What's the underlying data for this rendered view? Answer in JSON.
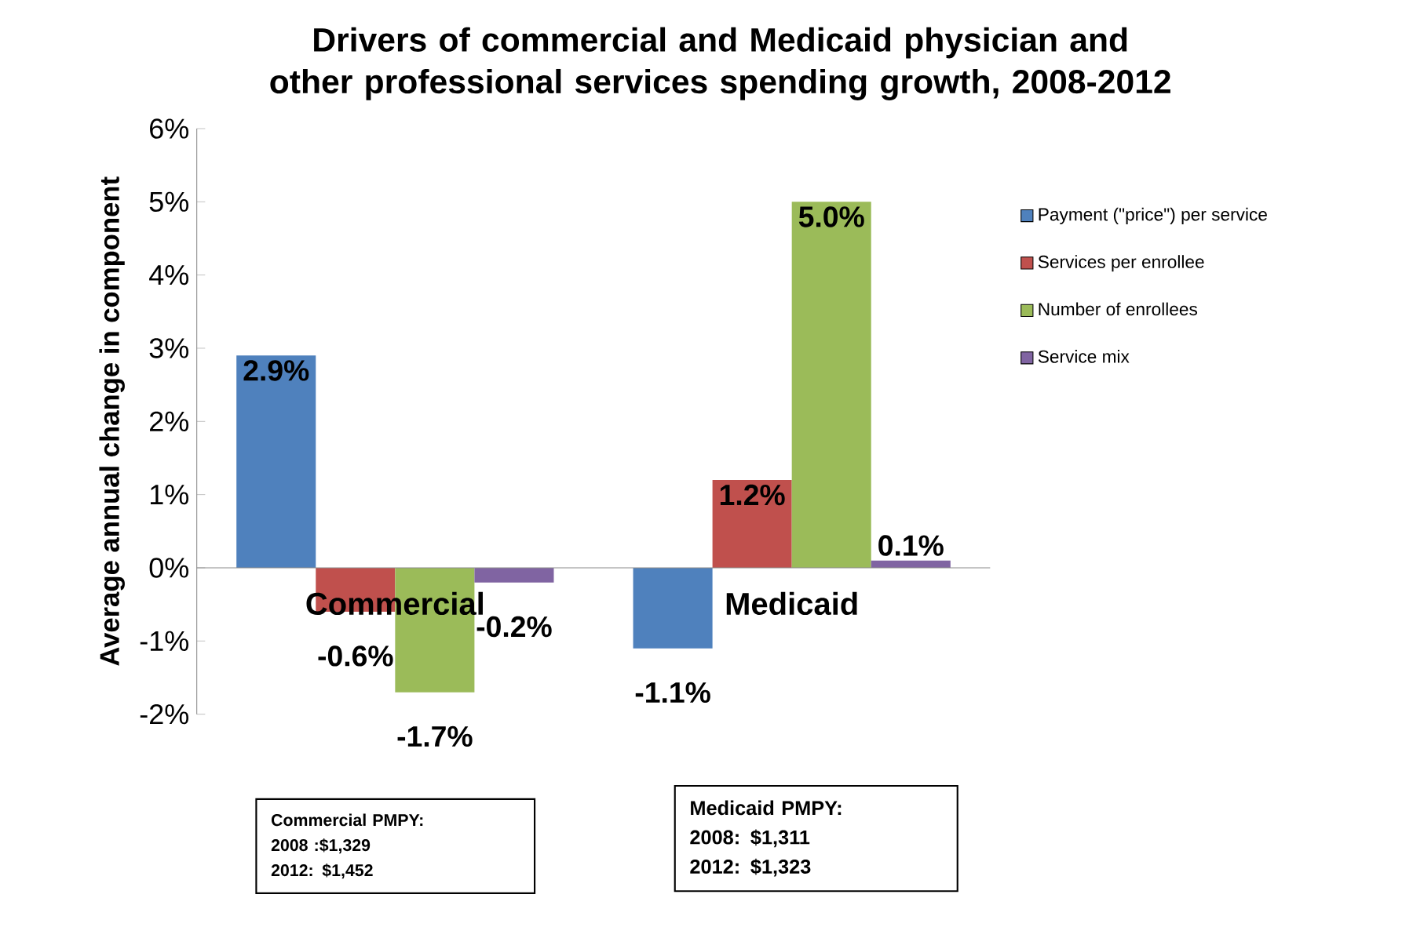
{
  "chart_data": {
    "type": "bar",
    "title": "Drivers of commercial and Medicaid physician and other professional services spending growth, 2008-2012",
    "ylabel": "Average annual change in component",
    "categories": [
      "Commercial",
      "Medicaid"
    ],
    "series": [
      {
        "name": "Payment (\"price\") per service",
        "color": "#4f81bd",
        "values": [
          2.9,
          -1.1
        ],
        "value_labels": [
          "2.9%",
          "-1.1%"
        ]
      },
      {
        "name": "Services per enrollee",
        "color": "#c0504d",
        "values": [
          -0.6,
          1.2
        ],
        "value_labels": [
          "-0.6%",
          "1.2%"
        ]
      },
      {
        "name": "Number of enrollees",
        "color": "#9bbb59",
        "values": [
          -1.7,
          5.0
        ],
        "value_labels": [
          "-1.7%",
          "5.0%"
        ]
      },
      {
        "name": "Service mix",
        "color": "#8064a2",
        "values": [
          -0.2,
          0.1
        ],
        "value_labels": [
          "-0.2%",
          "0.1%"
        ]
      }
    ],
    "ylim": [
      -2,
      6
    ],
    "yticks": [
      {
        "value": -2,
        "label": "-2%"
      },
      {
        "value": -1,
        "label": "-1%"
      },
      {
        "value": 0,
        "label": "0%"
      },
      {
        "value": 1,
        "label": "1%"
      },
      {
        "value": 2,
        "label": "2%"
      },
      {
        "value": 3,
        "label": "3%"
      },
      {
        "value": 4,
        "label": "4%"
      },
      {
        "value": 5,
        "label": "5%"
      },
      {
        "value": 6,
        "label": "6%"
      }
    ],
    "legend": "right",
    "grid": false,
    "annotations": [
      "Commercial PMPY:",
      "2008 :$1,329",
      "2012: $1,452",
      "Medicaid PMPY:",
      "2008: $1,311",
      "2012: $1,323"
    ]
  }
}
